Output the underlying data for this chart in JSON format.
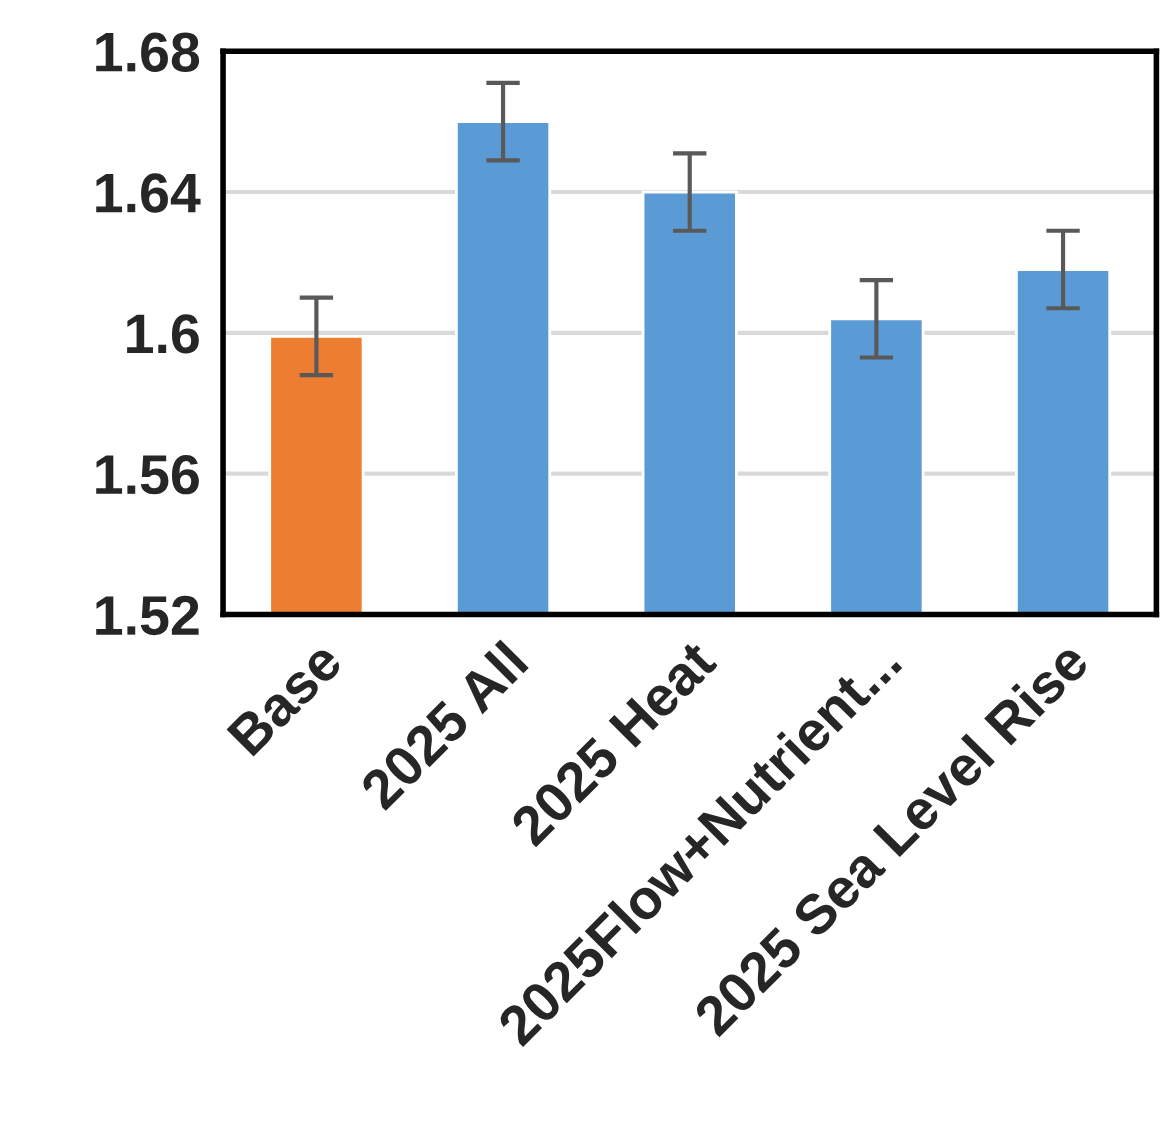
{
  "chart_data": {
    "type": "bar",
    "categories": [
      "Base",
      "2025 All",
      "2025 Heat",
      "2025Flow+Nutrient...",
      "2025 Sea Level Rise"
    ],
    "values": [
      1.599,
      1.66,
      1.64,
      1.604,
      1.618
    ],
    "colors": [
      "#ed7d31",
      "#5b9bd5",
      "#5b9bd5",
      "#5b9bd5",
      "#5b9bd5"
    ],
    "errors": [
      0.011,
      0.011,
      0.011,
      0.011,
      0.011
    ],
    "ylim": [
      1.52,
      1.68
    ],
    "yticks": [
      1.52,
      1.56,
      1.64,
      1.68,
      1.6
    ],
    "grid": "y"
  }
}
